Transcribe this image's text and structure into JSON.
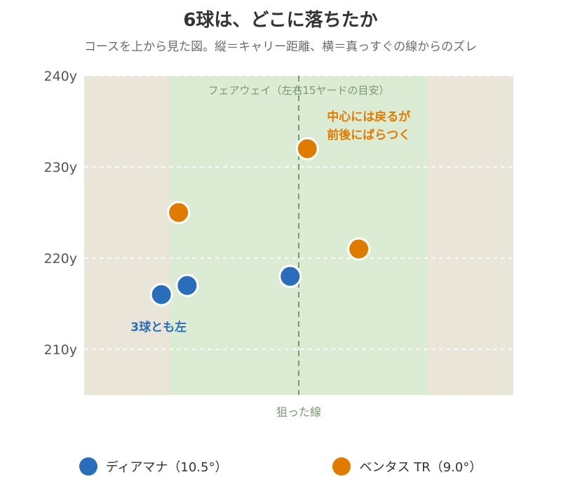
{
  "title": "6球は、どこに落ちたか",
  "subtitle": "コースを上から見た図。縦＝キャリー距離、横＝真っすぐの線からのズレ",
  "colors": {
    "diamana": "#2a6ebb",
    "ventus": "#e07b00",
    "fairway_fill": "#dcebd4",
    "rough_fill": "#e9e5d8",
    "fairway_label": "#7a9a6e",
    "target_line": "#7a9a6e",
    "annotation_blue": "#2a6ebb",
    "annotation_orange": "#e07b00"
  },
  "chart_data": {
    "type": "scatter",
    "title": "6球は、どこに落ちたか",
    "subtitle": "コースを上から見た図。縦＝キャリー距離、横＝真っすぐの線からのズレ",
    "xlabel": "狙った線",
    "ylabel": "",
    "xlim": [
      -25,
      25
    ],
    "ylim": [
      205,
      240
    ],
    "y_ticks": [
      210,
      220,
      230,
      240
    ],
    "y_tick_labels": [
      "210y",
      "220y",
      "230y",
      "240y"
    ],
    "grid": true,
    "fairway": {
      "x_range": [
        -15,
        15
      ],
      "label": "フェアウェイ（左右15ヤードの目安）"
    },
    "target_line_x": 0,
    "target_line_label": "狙った線",
    "legend_position": "bottom",
    "series": [
      {
        "name": "ディアマナ（10.5°）",
        "color": "#2a6ebb",
        "points": [
          {
            "x": -16,
            "y": 216
          },
          {
            "x": -13,
            "y": 217
          },
          {
            "x": -1,
            "y": 218
          }
        ]
      },
      {
        "name": "ベンタス TR（9.0°）",
        "color": "#e07b00",
        "points": [
          {
            "x": -14,
            "y": 225
          },
          {
            "x": 1,
            "y": 232
          },
          {
            "x": 7,
            "y": 221
          }
        ]
      }
    ],
    "annotations": [
      {
        "text": "3球とも左",
        "series": 0
      },
      {
        "lines": [
          "中心には戻るが",
          "前後にばらつく"
        ],
        "series": 1
      }
    ]
  }
}
